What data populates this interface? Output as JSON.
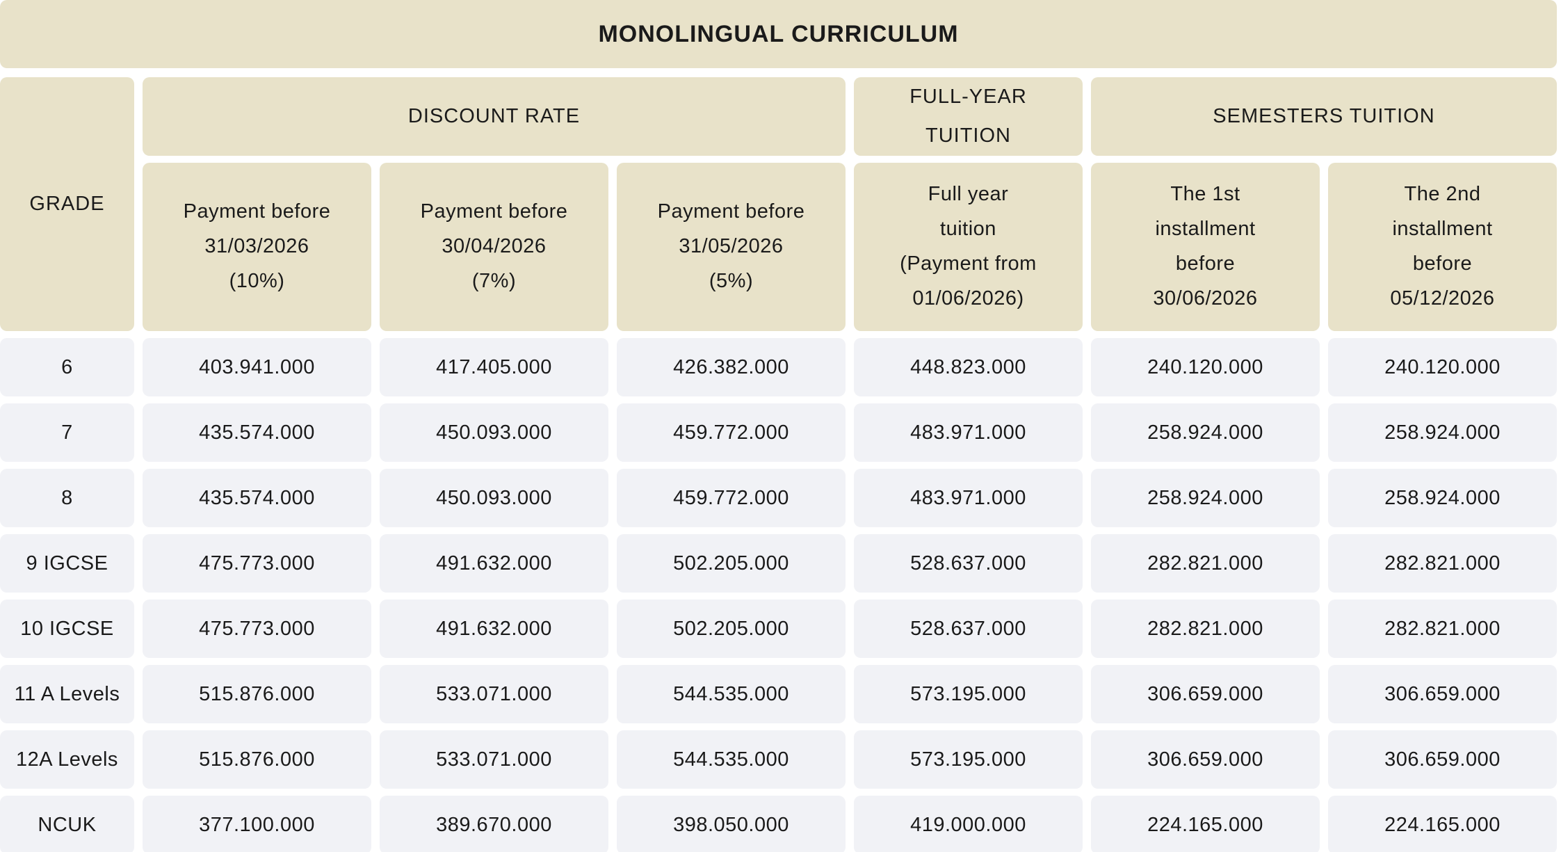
{
  "title": "MONOLINGUAL CURRICULUM",
  "colors": {
    "header_bg": "#e8e2c9",
    "data_cell_bg": "#f1f2f6",
    "text": "#1a1a1a",
    "background": "#ffffff"
  },
  "table": {
    "grade_header": "GRADE",
    "groups": {
      "discount_rate": "DISCOUNT RATE",
      "full_year": "FULL-YEAR\nTUITION",
      "semesters": "SEMESTERS TUITION"
    },
    "columns": [
      "Payment before\n31/03/2026\n(10%)",
      "Payment before\n30/04/2026\n(7%)",
      "Payment before\n31/05/2026\n(5%)",
      "Full year\ntuition\n(Payment from\n01/06/2026)",
      "The 1st\ninstallment\nbefore\n30/06/2026",
      "The 2nd\ninstallment\nbefore\n05/12/2026"
    ],
    "rows": [
      {
        "grade": "6",
        "values": [
          "403.941.000",
          "417.405.000",
          "426.382.000",
          "448.823.000",
          "240.120.000",
          "240.120.000"
        ]
      },
      {
        "grade": "7",
        "values": [
          "435.574.000",
          "450.093.000",
          "459.772.000",
          "483.971.000",
          "258.924.000",
          "258.924.000"
        ]
      },
      {
        "grade": "8",
        "values": [
          "435.574.000",
          "450.093.000",
          "459.772.000",
          "483.971.000",
          "258.924.000",
          "258.924.000"
        ]
      },
      {
        "grade": "9 IGCSE",
        "values": [
          "475.773.000",
          "491.632.000",
          "502.205.000",
          "528.637.000",
          "282.821.000",
          "282.821.000"
        ]
      },
      {
        "grade": "10 IGCSE",
        "values": [
          "475.773.000",
          "491.632.000",
          "502.205.000",
          "528.637.000",
          "282.821.000",
          "282.821.000"
        ]
      },
      {
        "grade": "11 A Levels",
        "values": [
          "515.876.000",
          "533.071.000",
          "544.535.000",
          "573.195.000",
          "306.659.000",
          "306.659.000"
        ]
      },
      {
        "grade": "12A Levels",
        "values": [
          "515.876.000",
          "533.071.000",
          "544.535.000",
          "573.195.000",
          "306.659.000",
          "306.659.000"
        ]
      },
      {
        "grade": "NCUK",
        "values": [
          "377.100.000",
          "389.670.000",
          "398.050.000",
          "419.000.000",
          "224.165.000",
          "224.165.000"
        ]
      }
    ]
  }
}
